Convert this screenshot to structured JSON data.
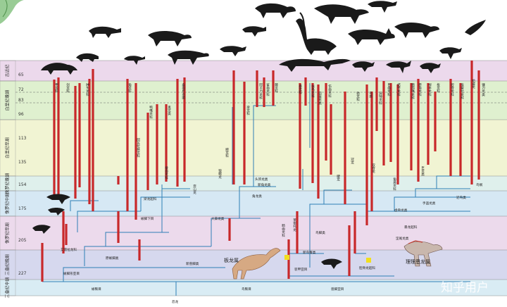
{
  "timeline": {
    "bands": [
      {
        "label": "古近纪",
        "color": "#ecd9ec"
      },
      {
        "label": "白垩纪晚期",
        "color": "#dff0cf"
      },
      {
        "label": "白垩纪早期",
        "color": "#f1f4d3"
      },
      {
        "label": "侏罗纪晚期",
        "color": "#dff0ec"
      },
      {
        "label": "侏罗纪中期",
        "color": "#d6e8f4"
      },
      {
        "label": "侏罗纪早期",
        "color": "#ecdaec"
      },
      {
        "label": "三叠纪晚期",
        "color": "#d6d8ee"
      },
      {
        "label": "三叠纪中期",
        "color": "#d9ecf4"
      }
    ],
    "ticks": [
      "65",
      "72",
      "83",
      "96",
      "113",
      "135",
      "154",
      "175",
      "205",
      "227"
    ]
  },
  "clades": {
    "dinosauria": "恐龙",
    "saurischia": "蜥臀目",
    "ornithischia": "鸟臀目",
    "sauropodomorpha": "蜥脚形亚目",
    "theropoda": "兽脚亚目",
    "neotheropoda": "新兽脚类",
    "prosauropoda": "原蜥脚类",
    "sauropoda": "蜥脚下目",
    "neornithischia": "新鸟臀类",
    "thyreophora": "装甲亚目",
    "ceratopsia": "角龙类",
    "ornithopoda": "鸟脚类",
    "tetanurae": "坚尾龙类",
    "coelurosauria": "虚骨龙类",
    "maniraptora": "手盗龙类",
    "paraves": "近鸟类",
    "aves": "鸟纲",
    "neoceratopsia": "新角龙类",
    "macronaria": "大鼻龙类",
    "diplodocoidea": "梁龙超科",
    "coelophysoidea": "腔骨龙超科",
    "marginocephalia": "头饰龙类",
    "tyrannosauroidea": "暴龙超科",
    "herrerasauridae": "艾雷拉龙科"
  },
  "taxa": [
    "甲龙科",
    "剑龙科",
    "肿头龙科",
    "角龙科",
    "鸭嘴龙科",
    "禽龙类",
    "泰坦巨龙类",
    "腕龙科",
    "梁龙科",
    "阿贝力龙科",
    "鲨齿龙科",
    "棘龙科",
    "暴龙科",
    "似鸟龙科",
    "窃蛋龙类",
    "伤齿龙科",
    "驰龙科",
    "鸟类",
    "异特龙科",
    "巨齿龙科",
    "结节龙科",
    "鹦鹉嘴龙科",
    "原角龙科",
    "禄丰龙科",
    "板龙科",
    "腔骨龙科",
    "埃雷拉龙科",
    "始盗龙",
    "镰刀龙类",
    "阿瓦拉慈龙科",
    "棱齿龙科",
    "奔山龙",
    "狼鳍龙",
    "畸齿龙科",
    "莱索托龙",
    "腱龙",
    "冠龙",
    "双脊龙",
    "角鼻龙科",
    "巨龙类"
  ],
  "examples": {
    "plateosaurus": "板龙属",
    "allosaurus": "理理恩龙属"
  },
  "watermark": "知乎用户"
}
